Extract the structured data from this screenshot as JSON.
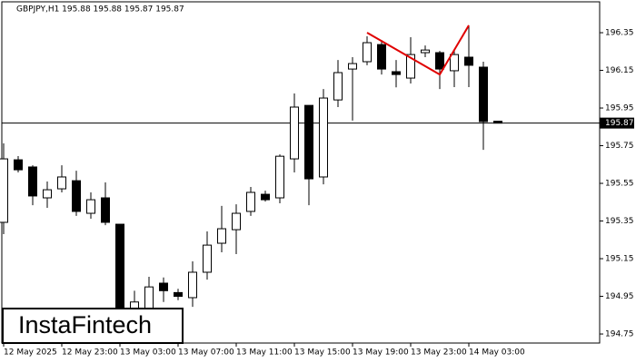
{
  "chart_data": {
    "type": "candlestick",
    "title": "GBPJPY,H1  195.88 195.88 195.87 195.87",
    "categories": [
      "12 May 2025",
      null,
      null,
      null,
      "12 May 23:00",
      null,
      null,
      null,
      "13 May 03:00",
      null,
      null,
      null,
      "13 May 07:00",
      null,
      null,
      null,
      "13 May 11:00",
      null,
      null,
      null,
      "13 May 15:00",
      null,
      null,
      null,
      "13 May 19:00",
      null,
      null,
      null,
      "13 May 23:00",
      null,
      null,
      null,
      "14 May 03:00",
      null,
      null
    ],
    "open": [
      195.343,
      195.675,
      195.637,
      195.473,
      195.521,
      195.564,
      195.391,
      195.473,
      195.333,
      194.87,
      194.885,
      195.02,
      194.97,
      194.943,
      195.078,
      195.232,
      195.304,
      195.401,
      195.492,
      195.473,
      195.68,
      195.964,
      195.584,
      195.993,
      196.157,
      196.196,
      196.287,
      196.143,
      196.109,
      196.244,
      196.244,
      196.148,
      196.22,
      196.167,
      195.88
    ],
    "high": [
      195.762,
      195.695,
      195.646,
      195.56,
      195.646,
      195.617,
      195.502,
      195.555,
      195.333,
      194.98,
      195.054,
      195.05,
      194.99,
      195.136,
      195.295,
      195.43,
      195.439,
      195.531,
      195.511,
      195.704,
      196.027,
      195.964,
      196.051,
      196.205,
      196.22,
      196.331,
      196.311,
      196.205,
      196.326,
      196.282,
      196.253,
      196.258,
      196.389,
      196.196,
      195.88
    ],
    "low": [
      195.28,
      195.608,
      195.434,
      195.42,
      195.502,
      195.377,
      195.362,
      195.328,
      194.74,
      194.8,
      194.86,
      194.92,
      194.93,
      194.894,
      195.039,
      195.184,
      195.174,
      195.377,
      195.453,
      195.444,
      195.608,
      195.434,
      195.545,
      195.955,
      195.883,
      196.177,
      196.128,
      196.06,
      196.08,
      196.22,
      196.051,
      196.061,
      196.061,
      195.728,
      195.87
    ],
    "close": [
      195.68,
      195.622,
      195.483,
      195.516,
      195.584,
      195.401,
      195.463,
      195.343,
      194.81,
      194.92,
      195.0,
      194.98,
      194.95,
      195.078,
      195.222,
      195.309,
      195.391,
      195.502,
      195.463,
      195.694,
      195.955,
      195.574,
      196.003,
      196.138,
      196.186,
      196.297,
      196.157,
      196.128,
      196.234,
      196.258,
      196.157,
      196.234,
      196.177,
      195.878,
      195.87
    ],
    "up_color": "#ffffff",
    "down_color": "#000000",
    "ylim": [
      194.702,
      196.514
    ],
    "yticks": [
      196.35,
      196.15,
      195.95,
      195.75,
      195.55,
      195.35,
      195.15,
      194.95,
      194.75
    ],
    "current_price": 195.87,
    "pattern": {
      "color": "#e00000",
      "index": [
        25,
        30,
        32
      ],
      "values": [
        196.35,
        196.128,
        196.389
      ]
    },
    "watermark": "InstaFintech"
  }
}
